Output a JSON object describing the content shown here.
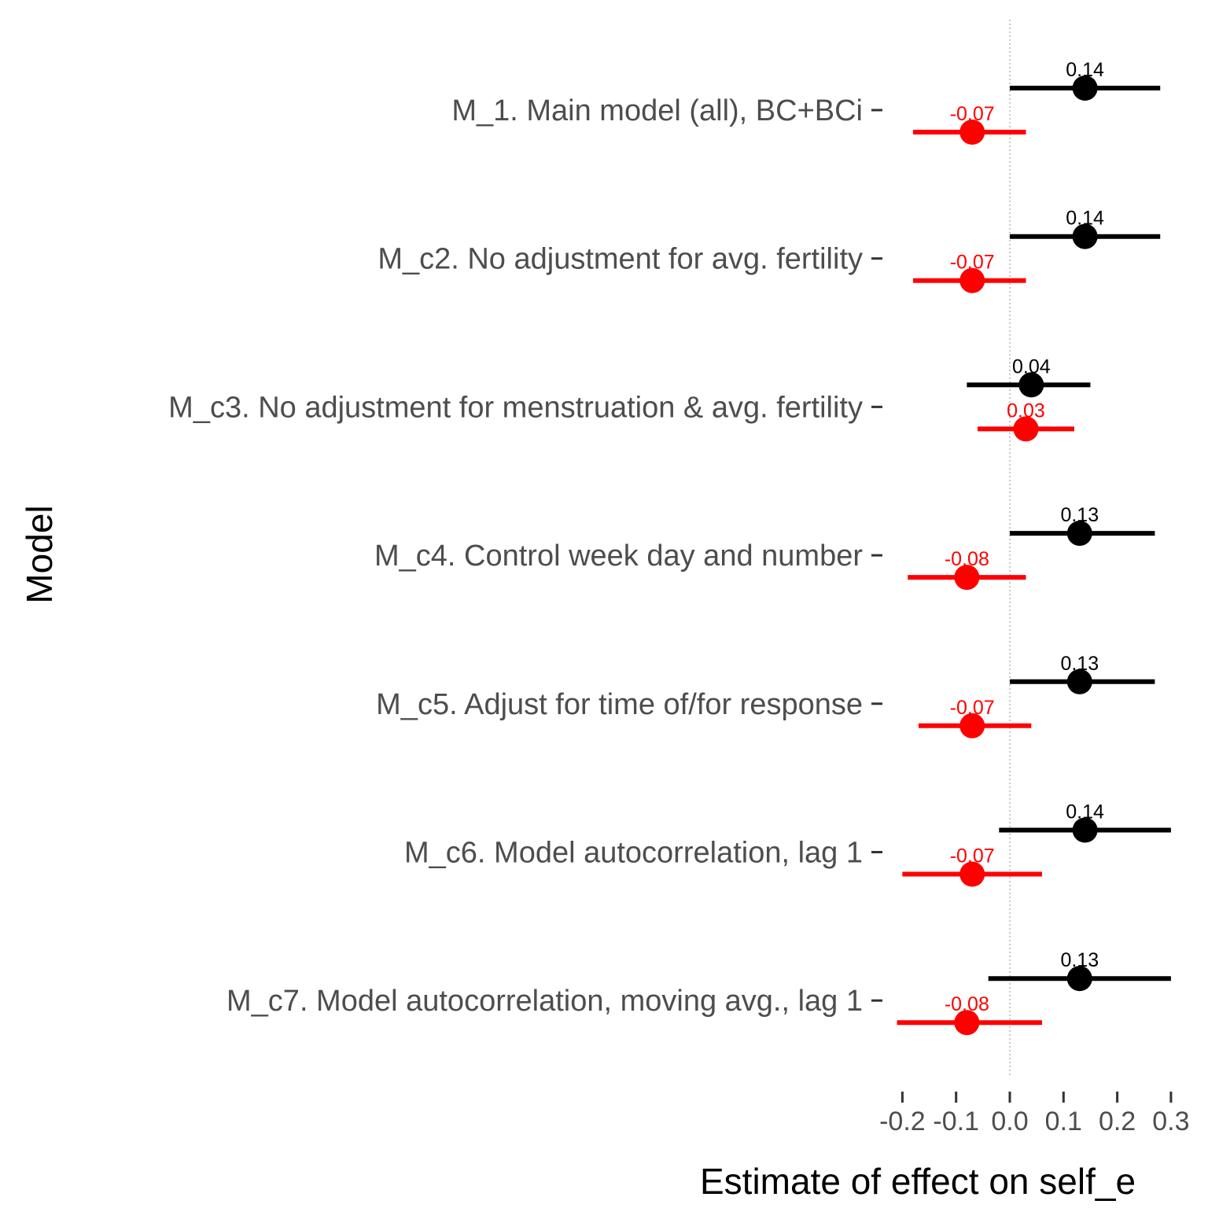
{
  "chart_data": {
    "type": "scatter",
    "subtype": "forest-plot",
    "xlabel": "Estimate of effect on self_e",
    "ylabel": "Model",
    "xlim": [
      -0.2,
      0.3
    ],
    "x_ticks": [
      "-0.2",
      "-0.1",
      "0.0",
      "0.1",
      "0.2",
      "0.3"
    ],
    "reference_line_x": 0,
    "grid": false,
    "legend": "none",
    "models": [
      "M_1. Main model (all), BC+BCi",
      "M_c2. No adjustment for avg. fertility",
      "M_c3. No adjustment for menstruation & avg. fertility",
      "M_c4. Control week day and number",
      "M_c5. Adjust for time of/for response",
      "M_c6. Model autocorrelation, lag 1",
      "M_c7. Model autocorrelation, moving avg., lag 1"
    ],
    "series": [
      {
        "color": "#000000",
        "estimates": [
          0.14,
          0.14,
          0.04,
          0.13,
          0.13,
          0.14,
          0.13
        ],
        "labels": [
          "0.14",
          "0.14",
          "0.04",
          "0.13",
          "0.13",
          "0.14",
          "0.13"
        ],
        "ci_low": [
          0.0,
          0.0,
          -0.08,
          0.0,
          0.0,
          -0.02,
          -0.04
        ],
        "ci_high": [
          0.28,
          0.28,
          0.15,
          0.27,
          0.27,
          0.3,
          0.3
        ]
      },
      {
        "color": "#ff0000",
        "estimates": [
          -0.07,
          -0.07,
          0.03,
          -0.08,
          -0.07,
          -0.07,
          -0.08
        ],
        "labels": [
          "-0.07",
          "-0.07",
          "0.03",
          "-0.08",
          "-0.07",
          "-0.07",
          "-0.08"
        ],
        "ci_low": [
          -0.18,
          -0.18,
          -0.06,
          -0.19,
          -0.17,
          -0.2,
          -0.21
        ],
        "ci_high": [
          0.03,
          0.03,
          0.12,
          0.03,
          0.04,
          0.06,
          0.06
        ]
      }
    ]
  }
}
